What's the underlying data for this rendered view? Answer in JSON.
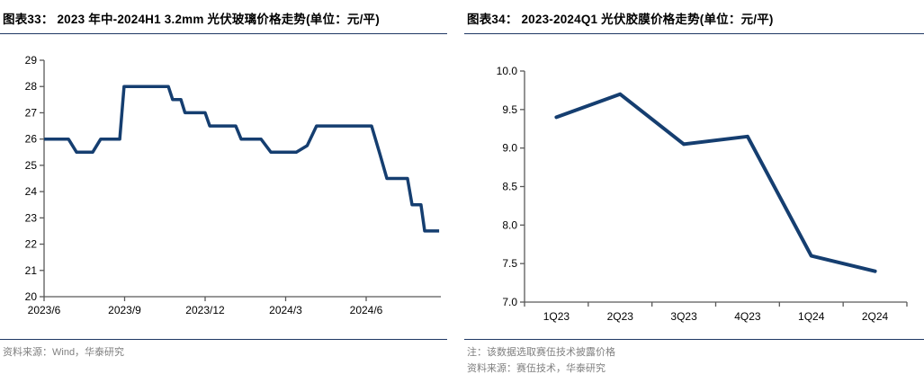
{
  "panels": [
    {
      "id": "chart33",
      "title": "图表33： 2023 年中-2024H1 3.2mm 光伏玻璃价格走势(单位：元/平)",
      "source": "资料来源：Wind，华泰研究"
    },
    {
      "id": "chart34",
      "title": "图表34： 2023-2024Q1 光伏胶膜价格走势(单位：元/平)",
      "note": "注：该数据选取赛伍技术披露价格",
      "source": "资料来源：赛伍技术，华泰研究"
    }
  ],
  "chart_data": [
    {
      "type": "line",
      "title": "2023 年中-2024H1 3.2mm 光伏玻璃价格走势",
      "ylabel": "元/平",
      "ylim": [
        20,
        29
      ],
      "yticks": [
        20,
        21,
        22,
        23,
        24,
        25,
        26,
        27,
        28,
        29
      ],
      "x_unit": "months since 2023/6",
      "xlim": [
        0,
        14.8
      ],
      "xticks": [
        {
          "m": 0,
          "label": "2023/6"
        },
        {
          "m": 3,
          "label": "2023/9"
        },
        {
          "m": 6,
          "label": "2023/12"
        },
        {
          "m": 9,
          "label": "2024/3"
        },
        {
          "m": 12,
          "label": "2024/6"
        }
      ],
      "grid": false,
      "legend": "none",
      "series": [
        {
          "name": "3.2mm 光伏玻璃价格",
          "points": [
            [
              0.0,
              26.0
            ],
            [
              0.91,
              26.0
            ],
            [
              1.21,
              25.5
            ],
            [
              1.81,
              25.5
            ],
            [
              2.11,
              26.0
            ],
            [
              2.82,
              26.0
            ],
            [
              2.98,
              28.0
            ],
            [
              4.63,
              28.0
            ],
            [
              4.79,
              27.5
            ],
            [
              5.1,
              27.5
            ],
            [
              5.25,
              27.0
            ],
            [
              6.0,
              27.0
            ],
            [
              6.17,
              26.5
            ],
            [
              7.14,
              26.5
            ],
            [
              7.34,
              26.0
            ],
            [
              8.08,
              26.0
            ],
            [
              8.45,
              25.5
            ],
            [
              9.4,
              25.5
            ],
            [
              9.8,
              25.75
            ],
            [
              10.15,
              26.5
            ],
            [
              12.2,
              26.5
            ],
            [
              12.52,
              25.4
            ],
            [
              12.77,
              24.5
            ],
            [
              13.54,
              24.5
            ],
            [
              13.71,
              23.5
            ],
            [
              14.04,
              23.5
            ],
            [
              14.18,
              22.5
            ],
            [
              14.72,
              22.5
            ]
          ]
        }
      ]
    },
    {
      "type": "line",
      "title": "2023-2024Q1 光伏胶膜价格走势",
      "ylabel": "元/平",
      "ylim": [
        7.0,
        10.0
      ],
      "yticks": [
        7.0,
        7.5,
        8.0,
        8.5,
        9.0,
        9.5,
        10.0
      ],
      "categories": [
        "1Q23",
        "2Q23",
        "3Q23",
        "4Q23",
        "1Q24",
        "2Q24"
      ],
      "values": [
        9.4,
        9.7,
        9.05,
        9.15,
        7.6,
        7.4
      ],
      "grid": false,
      "legend": "none"
    }
  ],
  "colors": {
    "line": "#153E70",
    "rule": "#1F3864",
    "axis": "#595959",
    "tick_text": "#000000",
    "source_text": "#7F7F7F"
  }
}
